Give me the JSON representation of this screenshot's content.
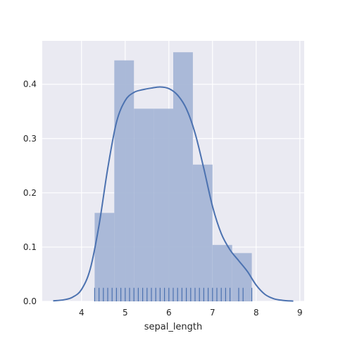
{
  "chart_data": {
    "type": "histogram+kde+rug",
    "title": "",
    "xlabel": "sepal_length",
    "ylabel": "",
    "xlim": [
      3.1,
      9.1
    ],
    "ylim": [
      0,
      0.48
    ],
    "x_ticks": [
      4,
      5,
      6,
      7,
      8,
      9
    ],
    "x_tick_labels": [
      "4",
      "5",
      "6",
      "7",
      "8",
      "9"
    ],
    "y_ticks": [
      0.0,
      0.1,
      0.2,
      0.3,
      0.4
    ],
    "y_tick_labels": [
      "0.0",
      "0.1",
      "0.2",
      "0.3",
      "0.4"
    ],
    "grid": true,
    "background_color": "#EAEAF2",
    "grid_color": "#FFFFFF",
    "bar_color": "#A6B6D6",
    "line_color": "#4C72B0",
    "histogram": {
      "bins": [
        {
          "x0": 4.3,
          "x1": 4.75,
          "density": 0.163
        },
        {
          "x0": 4.75,
          "x1": 5.2,
          "density": 0.444
        },
        {
          "x0": 5.2,
          "x1": 5.65,
          "density": 0.355
        },
        {
          "x0": 5.65,
          "x1": 6.1,
          "density": 0.355
        },
        {
          "x0": 6.1,
          "x1": 6.55,
          "density": 0.459
        },
        {
          "x0": 6.55,
          "x1": 7.0,
          "density": 0.252
        },
        {
          "x0": 7.0,
          "x1": 7.45,
          "density": 0.104
        },
        {
          "x0": 7.45,
          "x1": 7.9,
          "density": 0.089
        }
      ]
    },
    "kde": {
      "x": [
        3.35,
        3.6,
        3.8,
        4.0,
        4.2,
        4.4,
        4.6,
        4.8,
        5.0,
        5.2,
        5.4,
        5.6,
        5.8,
        6.0,
        6.2,
        6.4,
        6.6,
        6.8,
        7.0,
        7.2,
        7.4,
        7.6,
        7.8,
        8.0,
        8.2,
        8.4,
        8.6,
        8.85
      ],
      "y": [
        0.001,
        0.003,
        0.008,
        0.022,
        0.06,
        0.14,
        0.245,
        0.33,
        0.37,
        0.385,
        0.39,
        0.393,
        0.395,
        0.392,
        0.38,
        0.355,
        0.31,
        0.245,
        0.175,
        0.125,
        0.095,
        0.075,
        0.055,
        0.03,
        0.013,
        0.005,
        0.002,
        0.0005
      ]
    },
    "rug": {
      "height": 0.025,
      "values": [
        4.3,
        4.4,
        4.5,
        4.6,
        4.7,
        4.8,
        4.9,
        5.0,
        5.1,
        5.2,
        5.3,
        5.4,
        5.5,
        5.6,
        5.7,
        5.8,
        5.9,
        6.0,
        6.1,
        6.2,
        6.3,
        6.4,
        6.5,
        6.6,
        6.7,
        6.8,
        6.9,
        7.0,
        7.1,
        7.2,
        7.3,
        7.4,
        7.6,
        7.7,
        7.9
      ]
    }
  }
}
